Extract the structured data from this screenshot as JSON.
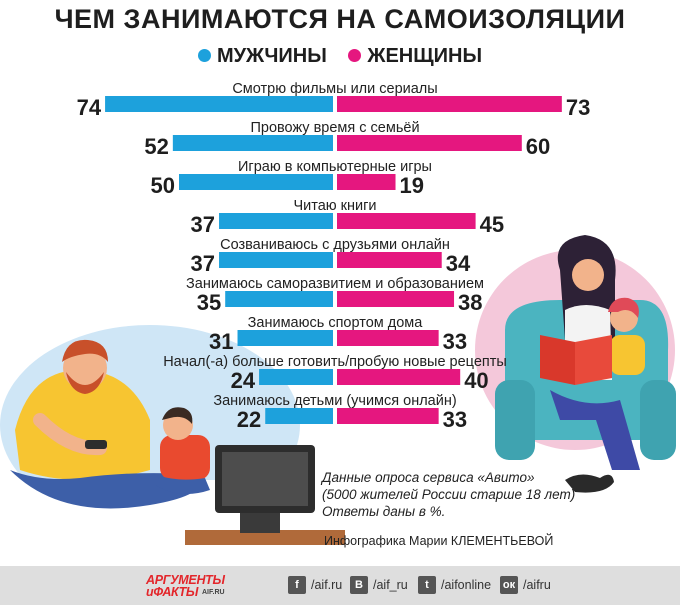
{
  "chart_data": {
    "type": "bar",
    "title": "ЧЕМ ЗАНИМАЮТСЯ НА САМОИЗОЛЯЦИИ",
    "orientation": "horizontal-diverging",
    "categories": [
      "Смотрю фильмы или сериалы",
      "Провожу время с семьёй",
      "Играю в компьютерные игры",
      "Читаю книги",
      "Созваниваюсь с друзьями онлайн",
      "Занимаюсь саморазвитием и образованием",
      "Занимаюсь спортом дома",
      "Начал(-а) больше готовить/пробую новые рецепты",
      "Занимаюсь детьми (учимся онлайн)"
    ],
    "series": [
      {
        "name": "МУЖЧИНЫ",
        "color": "#1da1dc",
        "side": "left",
        "values": [
          74,
          52,
          50,
          37,
          37,
          35,
          31,
          24,
          22
        ]
      },
      {
        "name": "ЖЕНЩИНЫ",
        "color": "#e5177f",
        "side": "right",
        "values": [
          73,
          60,
          19,
          45,
          34,
          38,
          33,
          40,
          33
        ]
      }
    ],
    "units": "%",
    "legend_position": "top-center"
  },
  "note_lines": [
    "Данные опроса сервиса «Авито»",
    "(5000 жителей России старше 18 лет)",
    "Ответы даны в %."
  ],
  "credit": "Инфографика Марии КЛЕМЕНТЬЕВОЙ",
  "footer": {
    "logo_line1": "АРГУМЕНТЫ",
    "logo_line2": "иФАКТЫ",
    "logo_domain": "AIF.RU",
    "social": [
      {
        "icon": "facebook-icon",
        "glyph": "f",
        "label": "/aif.ru"
      },
      {
        "icon": "vk-icon",
        "glyph": "В",
        "label": "/aif_ru"
      },
      {
        "icon": "twitter-icon",
        "glyph": "t",
        "label": "/aifonline"
      },
      {
        "icon": "odnoklassniki-icon",
        "glyph": "ок",
        "label": "/aifru"
      }
    ]
  }
}
